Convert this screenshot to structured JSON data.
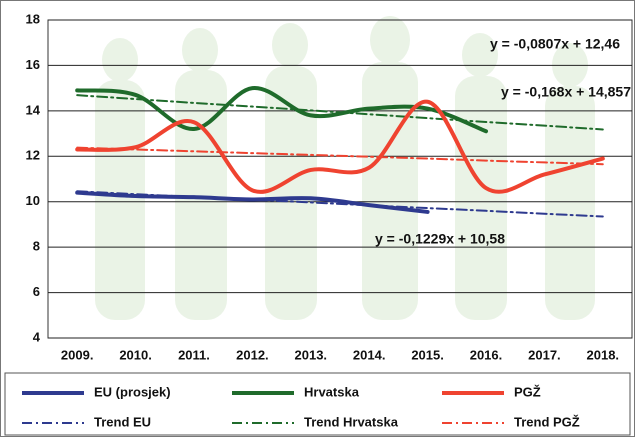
{
  "chart_data": {
    "type": "line",
    "categories": [
      "2009.",
      "2010.",
      "2011.",
      "2012.",
      "2013.",
      "2014.",
      "2015.",
      "2016.",
      "2017.",
      "2018."
    ],
    "ylim": [
      4,
      18
    ],
    "yticks": [
      4,
      6,
      8,
      10,
      12,
      14,
      16,
      18
    ],
    "grid": true,
    "smooth": true,
    "legend": "bottom",
    "series": [
      {
        "name": "EU (prosjek)",
        "color": "#2e3a8f",
        "dash": false,
        "values": [
          10.4,
          10.25,
          10.2,
          10.1,
          10.15,
          9.85,
          9.55,
          null,
          null,
          null
        ]
      },
      {
        "name": "Hrvatska",
        "color": "#1f6b2b",
        "dash": false,
        "values": [
          14.9,
          14.7,
          13.2,
          15.0,
          13.8,
          14.1,
          14.1,
          13.1,
          null,
          null
        ]
      },
      {
        "name": "PGŽ",
        "color": "#ef4330",
        "dash": false,
        "values": [
          12.3,
          12.4,
          13.5,
          10.5,
          11.4,
          11.5,
          14.4,
          10.6,
          11.2,
          11.9
        ]
      },
      {
        "name": "Trend EU",
        "color": "#2e3a8f",
        "dash": true,
        "values": [
          10.46,
          10.33,
          10.21,
          10.09,
          9.97,
          9.84,
          9.72,
          9.6,
          9.47,
          9.35
        ]
      },
      {
        "name": "Trend Hrvatska",
        "color": "#1f6b2b",
        "dash": true,
        "values": [
          14.69,
          14.52,
          14.35,
          14.19,
          14.02,
          13.85,
          13.68,
          13.51,
          13.35,
          13.18
        ]
      },
      {
        "name": "Trend PGŽ",
        "color": "#ef4330",
        "dash": true,
        "values": [
          12.38,
          12.3,
          12.22,
          12.14,
          12.06,
          11.98,
          11.9,
          11.81,
          11.73,
          11.65
        ]
      }
    ],
    "annotations": [
      {
        "text": "y = -0,0807x + 12,46",
        "color": "#ef4330"
      },
      {
        "text": "y = -0,168x + 14,857",
        "color": "#1f6b2b"
      },
      {
        "text": "y = -0,1229x + 10,58",
        "color": "#2e3a8f"
      }
    ]
  }
}
